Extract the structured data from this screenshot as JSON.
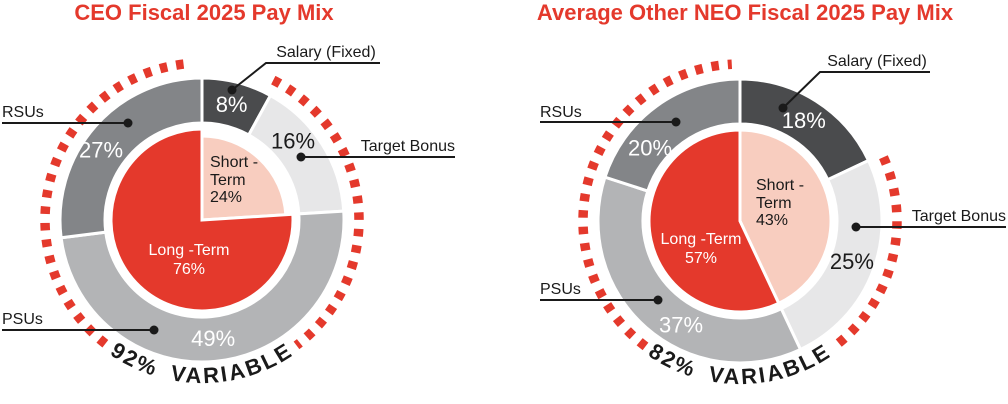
{
  "figure": {
    "background": "#FFFFFF"
  },
  "palette": {
    "red": "#E4392C",
    "pink": "#F8CDBF",
    "dark_gray": "#4A4B4D",
    "medium_gray": "#838588",
    "silver_gray": "#B3B4B6",
    "light_gray": "#E7E7E8",
    "text_black": "#1A1A1A",
    "white": "#FFFFFF"
  },
  "chart_data": [
    {
      "type": "donut",
      "title": "CEO Fiscal 2025 Pay Mix",
      "arc_annotation": "92% VARIABLE",
      "legend_position": "callouts",
      "outer_segments": [
        {
          "label": "Salary (Fixed)",
          "value": 8,
          "pct_label": "8%",
          "color": "#4A4B4D",
          "pct_label_color": "#FFFFFF"
        },
        {
          "label": "Target Bonus",
          "value": 16,
          "pct_label": "16%",
          "color": "#E7E7E8",
          "pct_label_color": "#1A1A1A"
        },
        {
          "label": "PSUs",
          "value": 49,
          "pct_label": "49%",
          "color": "#B3B4B6",
          "pct_label_color": "#FFFFFF"
        },
        {
          "label": "RSUs",
          "value": 27,
          "pct_label": "27%",
          "color": "#838588",
          "pct_label_color": "#FFFFFF"
        }
      ],
      "inner_segments": [
        {
          "label": "Short-Term",
          "value": 24,
          "text_lines": [
            "Short -",
            "Term",
            "24%"
          ],
          "color": "#F8CDBF",
          "text_color": "#1A1A1A"
        },
        {
          "label": "Long-Term",
          "value": 76,
          "text_lines": [
            "Long -Term",
            "76%"
          ],
          "color": "#E4392C",
          "text_color": "#FFFFFF"
        }
      ]
    },
    {
      "type": "donut",
      "title": "Average Other NEO Fiscal 2025 Pay Mix",
      "arc_annotation": "82% VARIABLE",
      "legend_position": "callouts",
      "outer_segments": [
        {
          "label": "Salary (Fixed)",
          "value": 18,
          "pct_label": "18%",
          "color": "#4A4B4D",
          "pct_label_color": "#FFFFFF"
        },
        {
          "label": "Target Bonus",
          "value": 25,
          "pct_label": "25%",
          "color": "#E7E7E8",
          "pct_label_color": "#1A1A1A"
        },
        {
          "label": "PSUs",
          "value": 37,
          "pct_label": "37%",
          "color": "#B3B4B6",
          "pct_label_color": "#FFFFFF"
        },
        {
          "label": "RSUs",
          "value": 20,
          "pct_label": "20%",
          "color": "#838588",
          "pct_label_color": "#FFFFFF"
        }
      ],
      "inner_segments": [
        {
          "label": "Short-Term",
          "value": 43,
          "text_lines": [
            "Short -",
            "Term",
            "43%"
          ],
          "color": "#F8CDBF",
          "text_color": "#1A1A1A"
        },
        {
          "label": "Long-Term",
          "value": 57,
          "text_lines": [
            "Long -Term",
            "57%"
          ],
          "color": "#E4392C",
          "text_color": "#FFFFFF"
        }
      ]
    }
  ]
}
